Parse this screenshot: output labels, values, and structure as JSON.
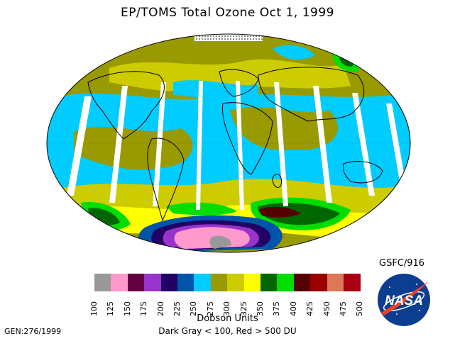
{
  "header": {
    "title": "EP/TOMS Total Ozone Oct  1, 1999"
  },
  "map": {
    "description_icons": [
      "globe-map",
      "continent-outlines",
      "ozone-hole-antarctica"
    ]
  },
  "footer": {
    "gsfc_id": "GSFC/916",
    "units_label": "Dobson Units",
    "range_note": "Dark Gray < 100, Red > 500 DU",
    "gen_code": "GEN:276/1999",
    "logo_text": "NASA"
  },
  "color_scale": {
    "ticks": [
      "100",
      "125",
      "150",
      "175",
      "200",
      "225",
      "250",
      "275",
      "300",
      "325",
      "350",
      "375",
      "400",
      "425",
      "450",
      "475",
      "500"
    ],
    "colors": [
      "#999999",
      "#ff99cc",
      "#660044",
      "#9933cc",
      "#220066",
      "#0055aa",
      "#00ccff",
      "#999900",
      "#cccc00",
      "#ffff00",
      "#006600",
      "#00dd00",
      "#550000",
      "#990000",
      "#dd7755",
      "#aa0011"
    ]
  }
}
